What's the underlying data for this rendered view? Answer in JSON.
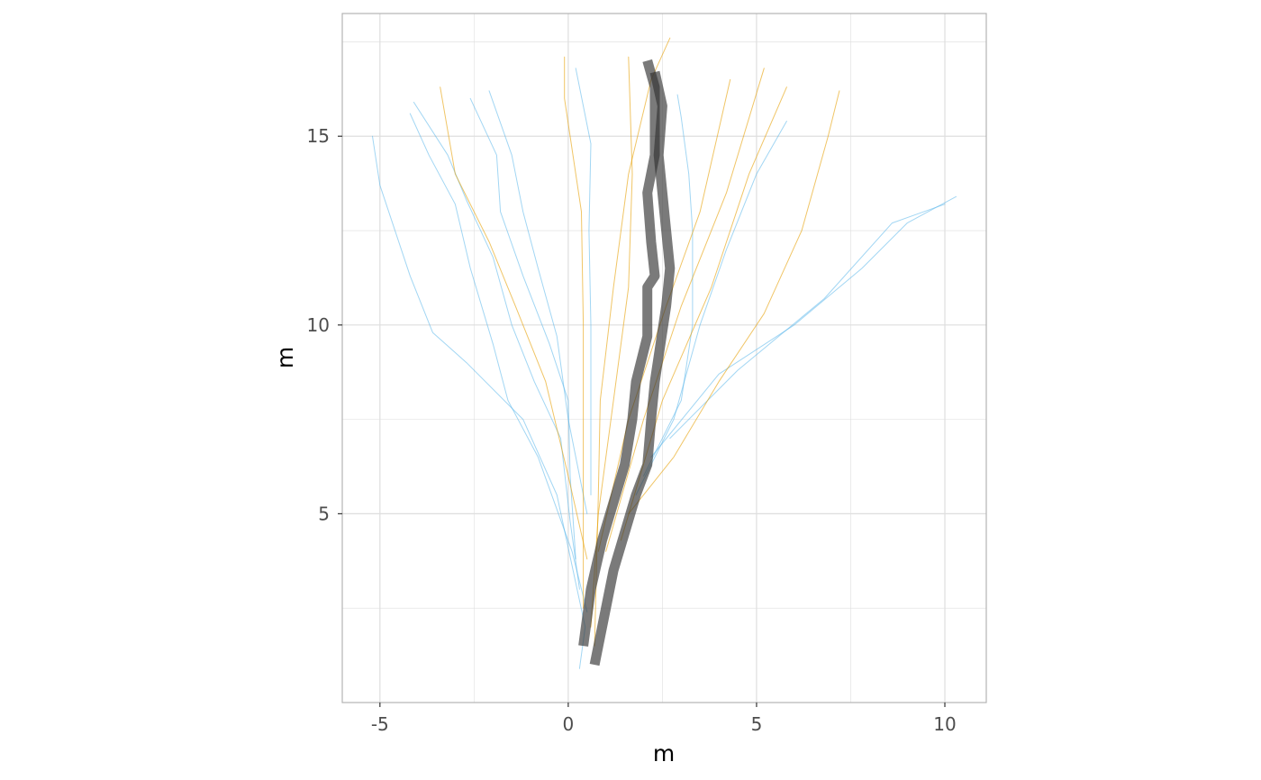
{
  "chart_data": {
    "type": "line",
    "title": "",
    "xlabel": "m",
    "ylabel": "m",
    "xlim": [
      -6.0,
      11.1
    ],
    "ylim": [
      0.0,
      18.25
    ],
    "x_ticks": [
      -5,
      0,
      5,
      10
    ],
    "y_ticks": [
      5,
      10,
      15
    ],
    "grid": true,
    "legend": "none",
    "colors": {
      "blue": "#56B4E9",
      "orange": "#E69F00",
      "mean": "#333333",
      "grid": "#dedede",
      "panel_border": "#b3b3b3"
    },
    "series": [
      {
        "group": "blue",
        "points": [
          [
            0.3,
            0.9
          ],
          [
            0.45,
            2.0
          ],
          [
            -0.3,
            5.5
          ],
          [
            -1.2,
            7.5
          ],
          [
            -2.7,
            9.0
          ],
          [
            -3.6,
            9.8
          ],
          [
            -4.2,
            11.3
          ],
          [
            -5.0,
            13.7
          ],
          [
            -5.2,
            15.0
          ]
        ]
      },
      {
        "group": "blue",
        "points": [
          [
            0.5,
            2.4
          ],
          [
            0.1,
            4.0
          ],
          [
            -0.8,
            6.5
          ],
          [
            -1.6,
            8.0
          ],
          [
            -2.0,
            9.5
          ],
          [
            -2.6,
            11.5
          ],
          [
            -3.0,
            13.2
          ],
          [
            -3.7,
            14.5
          ],
          [
            -4.2,
            15.6
          ]
        ]
      },
      {
        "group": "blue",
        "points": [
          [
            0.3,
            3.0
          ],
          [
            0.05,
            4.8
          ],
          [
            -0.2,
            7.0
          ],
          [
            -0.9,
            8.5
          ],
          [
            -1.5,
            10.0
          ],
          [
            -2.0,
            11.8
          ],
          [
            -2.7,
            13.3
          ],
          [
            -3.2,
            14.5
          ],
          [
            -4.1,
            15.9
          ]
        ]
      },
      {
        "group": "blue",
        "points": [
          [
            0.2,
            3.8
          ],
          [
            0.05,
            6.0
          ],
          [
            0.0,
            8.0
          ],
          [
            -0.5,
            9.5
          ],
          [
            -1.2,
            11.3
          ],
          [
            -1.8,
            13.0
          ],
          [
            -1.9,
            14.5
          ],
          [
            -2.6,
            16.0
          ]
        ]
      },
      {
        "group": "blue",
        "points": [
          [
            0.5,
            5.0
          ],
          [
            0.0,
            7.5
          ],
          [
            -0.3,
            9.7
          ],
          [
            -0.8,
            11.5
          ],
          [
            -1.2,
            13.0
          ],
          [
            -1.5,
            14.5
          ],
          [
            -2.1,
            16.2
          ]
        ]
      },
      {
        "group": "blue",
        "points": [
          [
            0.6,
            5.5
          ],
          [
            0.6,
            8.0
          ],
          [
            0.6,
            10.0
          ],
          [
            0.55,
            12.5
          ],
          [
            0.6,
            14.8
          ],
          [
            0.2,
            16.8
          ]
        ]
      },
      {
        "group": "blue",
        "points": [
          [
            2.0,
            6.0
          ],
          [
            3.0,
            8.0
          ],
          [
            3.3,
            10.0
          ],
          [
            3.3,
            12.5
          ],
          [
            3.2,
            14.0
          ],
          [
            3.0,
            15.5
          ],
          [
            2.9,
            16.1
          ]
        ]
      },
      {
        "group": "blue",
        "points": [
          [
            1.8,
            5.5
          ],
          [
            2.8,
            7.5
          ],
          [
            3.5,
            10.0
          ],
          [
            4.2,
            12.0
          ],
          [
            5.0,
            14.0
          ],
          [
            5.8,
            15.4
          ]
        ]
      },
      {
        "group": "blue",
        "points": [
          [
            2.2,
            6.5
          ],
          [
            4.0,
            8.7
          ],
          [
            6.0,
            10.0
          ],
          [
            7.8,
            11.5
          ],
          [
            9.0,
            12.7
          ],
          [
            10.3,
            13.4
          ]
        ]
      },
      {
        "group": "blue",
        "points": [
          [
            2.7,
            7.0
          ],
          [
            4.5,
            8.8
          ],
          [
            6.8,
            10.7
          ],
          [
            8.6,
            12.7
          ],
          [
            10.0,
            13.2
          ]
        ]
      },
      {
        "group": "orange",
        "points": [
          [
            0.5,
            3.8
          ],
          [
            0.0,
            6.0
          ],
          [
            -0.6,
            8.5
          ],
          [
            -1.4,
            10.5
          ],
          [
            -2.1,
            12.2
          ],
          [
            -3.0,
            14.0
          ],
          [
            -3.4,
            16.3
          ]
        ]
      },
      {
        "group": "orange",
        "points": [
          [
            0.4,
            2.5
          ],
          [
            0.4,
            5.0
          ],
          [
            0.4,
            7.0
          ],
          [
            0.4,
            10.0
          ],
          [
            0.35,
            13.0
          ],
          [
            -0.1,
            16.0
          ],
          [
            -0.1,
            17.1
          ]
        ]
      },
      {
        "group": "orange",
        "points": [
          [
            0.6,
            2.0
          ],
          [
            0.8,
            5.0
          ],
          [
            1.2,
            8.0
          ],
          [
            1.6,
            11.0
          ],
          [
            1.7,
            14.0
          ],
          [
            1.6,
            17.1
          ]
        ]
      },
      {
        "group": "orange",
        "points": [
          [
            0.7,
            1.5
          ],
          [
            0.8,
            5.5
          ],
          [
            0.85,
            8.0
          ],
          [
            1.2,
            11.0
          ],
          [
            1.6,
            14.0
          ],
          [
            2.2,
            16.5
          ],
          [
            2.7,
            17.6
          ]
        ]
      },
      {
        "group": "orange",
        "points": [
          [
            0.8,
            4.0
          ],
          [
            1.6,
            7.5
          ],
          [
            2.6,
            10.5
          ],
          [
            3.5,
            13.0
          ],
          [
            4.3,
            16.5
          ]
        ]
      },
      {
        "group": "orange",
        "points": [
          [
            1.0,
            4.0
          ],
          [
            2.0,
            7.5
          ],
          [
            3.0,
            10.5
          ],
          [
            4.2,
            13.5
          ],
          [
            5.2,
            16.8
          ]
        ]
      },
      {
        "group": "orange",
        "points": [
          [
            1.4,
            4.3
          ],
          [
            2.5,
            8.0
          ],
          [
            3.8,
            11.0
          ],
          [
            4.8,
            14.0
          ],
          [
            5.8,
            16.3
          ]
        ]
      },
      {
        "group": "orange",
        "points": [
          [
            1.6,
            5.0
          ],
          [
            2.8,
            6.5
          ],
          [
            4.0,
            8.5
          ],
          [
            5.2,
            10.3
          ],
          [
            6.2,
            12.5
          ],
          [
            6.9,
            15.0
          ],
          [
            7.2,
            16.2
          ]
        ]
      },
      {
        "group": "mean",
        "points": [
          [
            0.4,
            1.5
          ],
          [
            0.6,
            3.0
          ],
          [
            0.9,
            4.3
          ],
          [
            1.2,
            5.3
          ],
          [
            1.5,
            6.3
          ],
          [
            1.7,
            7.5
          ],
          [
            1.8,
            8.5
          ],
          [
            2.1,
            9.7
          ],
          [
            2.1,
            11.0
          ],
          [
            2.3,
            11.3
          ],
          [
            2.2,
            12.2
          ],
          [
            2.1,
            13.5
          ],
          [
            2.3,
            14.5
          ],
          [
            2.3,
            16.3
          ],
          [
            2.1,
            17.0
          ]
        ]
      },
      {
        "group": "mean",
        "points": [
          [
            0.7,
            1.0
          ],
          [
            0.8,
            1.5
          ],
          [
            1.0,
            2.5
          ],
          [
            1.2,
            3.5
          ],
          [
            1.5,
            4.5
          ],
          [
            1.8,
            5.5
          ],
          [
            2.1,
            6.3
          ],
          [
            2.2,
            7.5
          ],
          [
            2.3,
            8.5
          ],
          [
            2.45,
            9.5
          ],
          [
            2.6,
            10.5
          ],
          [
            2.7,
            11.5
          ],
          [
            2.6,
            12.5
          ],
          [
            2.5,
            13.5
          ],
          [
            2.4,
            14.5
          ],
          [
            2.5,
            15.8
          ],
          [
            2.3,
            16.7
          ]
        ]
      }
    ]
  }
}
